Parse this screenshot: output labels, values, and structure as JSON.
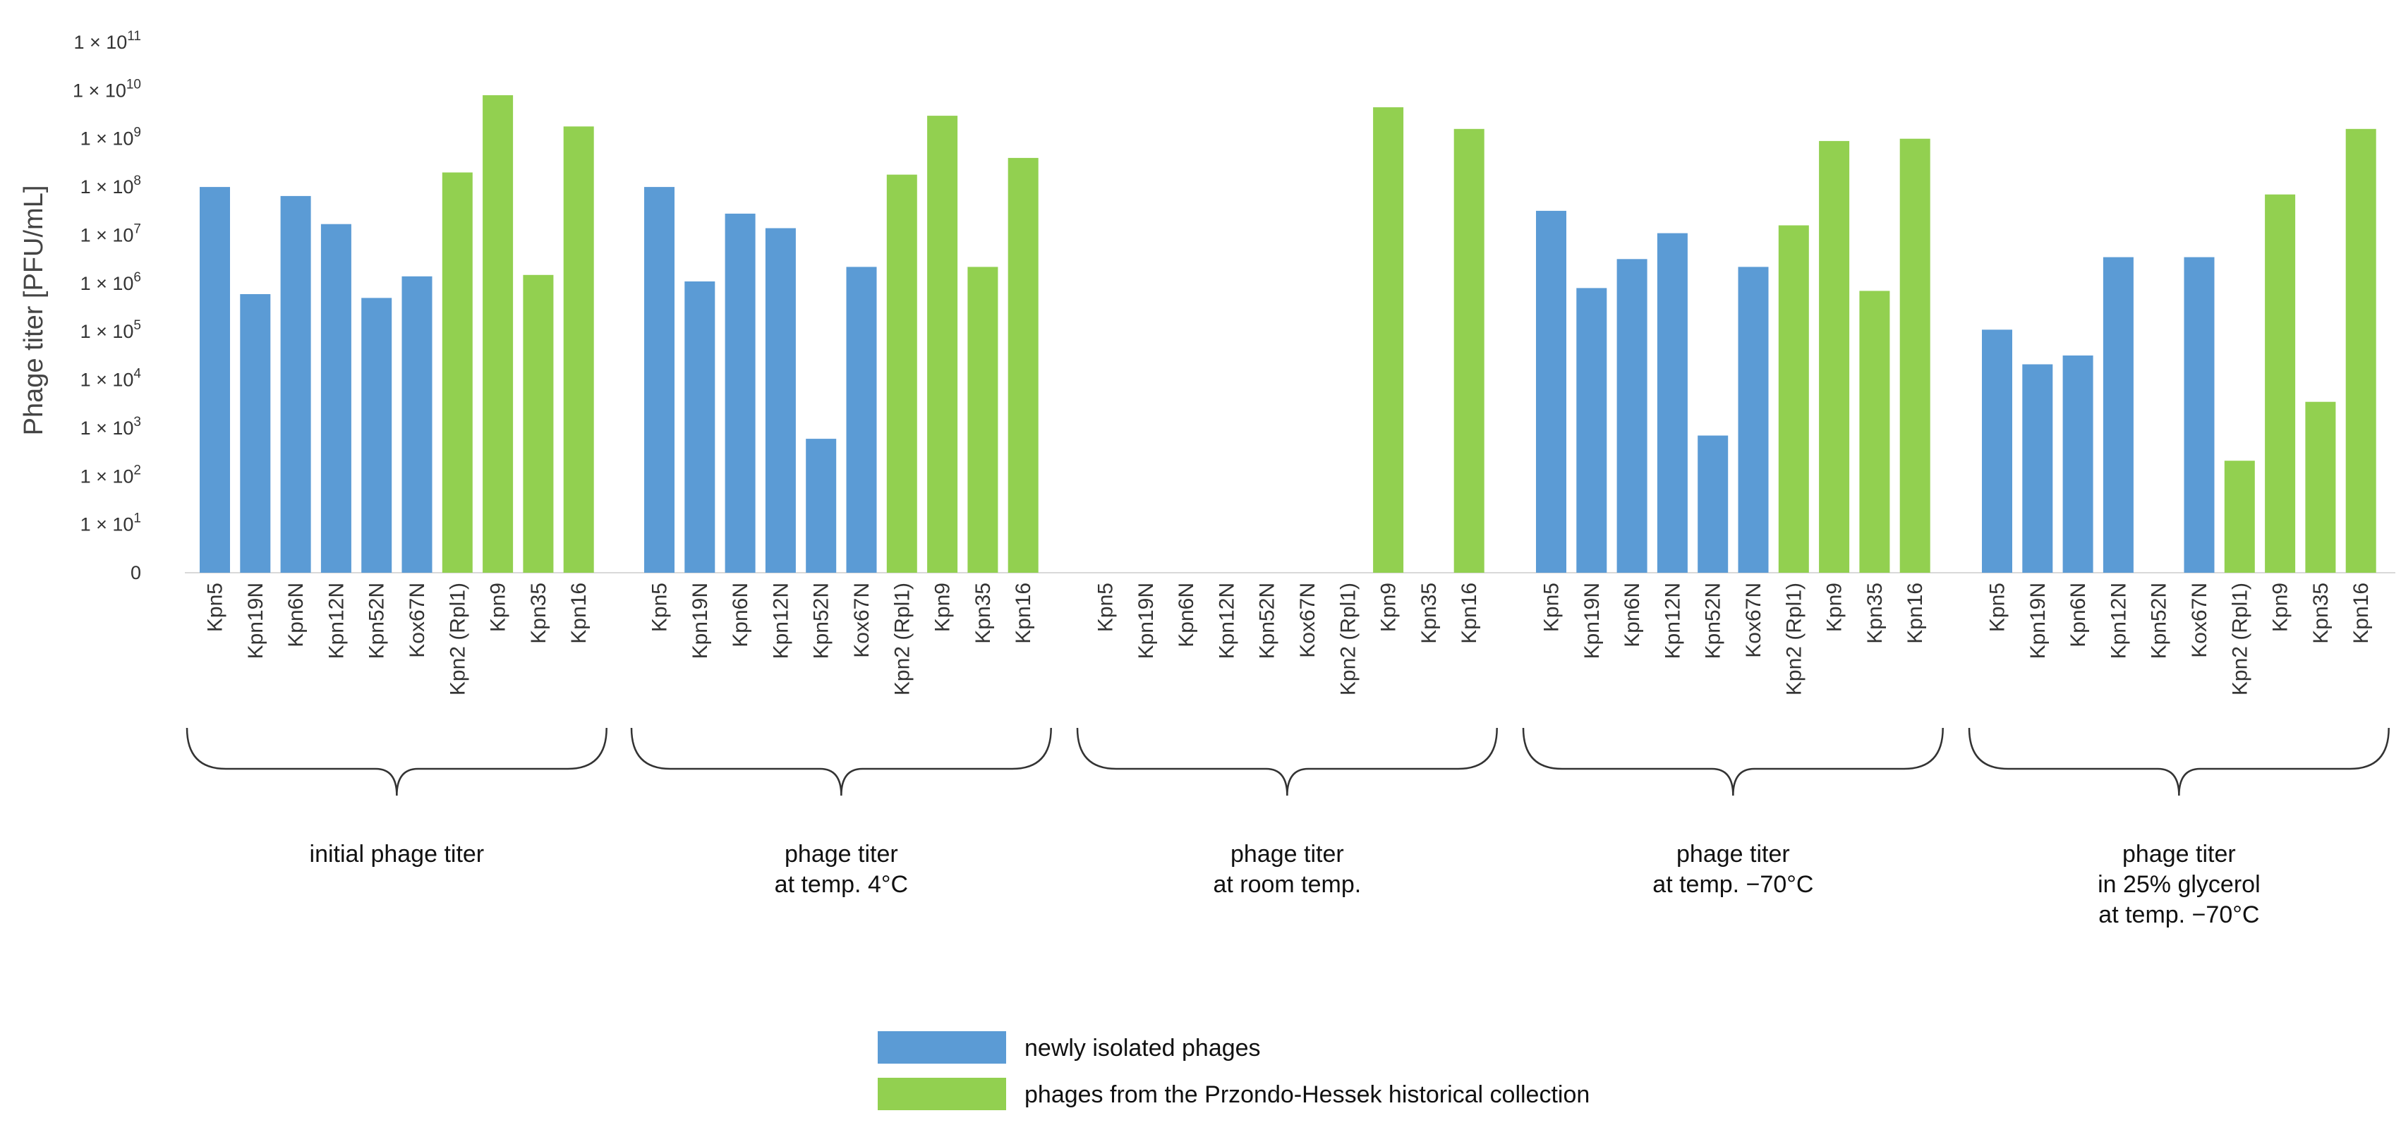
{
  "chart_data": {
    "type": "bar",
    "ylabel": "Phage titer [PFU/mL]",
    "yscale": "log",
    "yticks": [
      {
        "base": "0",
        "exp": ""
      },
      {
        "base": "1 × 10",
        "exp": "1"
      },
      {
        "base": "1 × 10",
        "exp": "2"
      },
      {
        "base": "1 × 10",
        "exp": "3"
      },
      {
        "base": "1 × 10",
        "exp": "4"
      },
      {
        "base": "1 × 10",
        "exp": "5"
      },
      {
        "base": "1 × 10",
        "exp": "6"
      },
      {
        "base": "1 × 10",
        "exp": "7"
      },
      {
        "base": "1 × 10",
        "exp": "8"
      },
      {
        "base": "1 × 10",
        "exp": "9"
      },
      {
        "base": "1 × 10",
        "exp": "10"
      },
      {
        "base": "1 × 10",
        "exp": "11"
      }
    ],
    "ylim_log10": [
      0,
      11
    ],
    "categories": [
      "Kpn5",
      "Kpn19N",
      "Kpn6N",
      "Kpn12N",
      "Kpn52N",
      "Kox67N",
      "Kpn2 (Rpl1)",
      "Kpn9",
      "Kpn35",
      "Kpn16"
    ],
    "category_types": [
      "new",
      "new",
      "new",
      "new",
      "new",
      "new",
      "historical",
      "historical",
      "historical",
      "historical"
    ],
    "groups": [
      {
        "label_lines": [
          "initial phage titer"
        ],
        "values": [
          100000000,
          600000,
          65000000,
          17000000,
          500000,
          1400000,
          200000000,
          8000000000,
          1500000,
          1800000000
        ]
      },
      {
        "label_lines": [
          "phage titer",
          "at temp. 4°C"
        ],
        "values": [
          100000000,
          1100000,
          28000000,
          14000000,
          600,
          2200000,
          180000000,
          3000000000,
          2200000,
          400000000
        ]
      },
      {
        "label_lines": [
          "phage titer",
          "at room temp."
        ],
        "values": [
          0,
          0,
          0,
          0,
          0,
          0,
          0,
          4500000000,
          0,
          1600000000
        ]
      },
      {
        "label_lines": [
          "phage titer",
          "at temp. −70°C"
        ],
        "values": [
          32000000,
          800000,
          3200000,
          11000000,
          700,
          2200000,
          16000000,
          900000000,
          700000,
          1000000000
        ]
      },
      {
        "label_lines": [
          "phage titer",
          "in 25% glycerol",
          "at temp. −70°C"
        ],
        "values": [
          110000,
          21000,
          32000,
          3500000,
          0,
          3500000,
          210,
          70000000,
          3500,
          1600000000
        ]
      }
    ],
    "legend": [
      {
        "key": "new",
        "label": "newly isolated phages",
        "color": "#5b9bd5"
      },
      {
        "key": "historical",
        "label": "phages from the Przondo-Hessek historical collection",
        "color": "#92d050"
      }
    ]
  }
}
